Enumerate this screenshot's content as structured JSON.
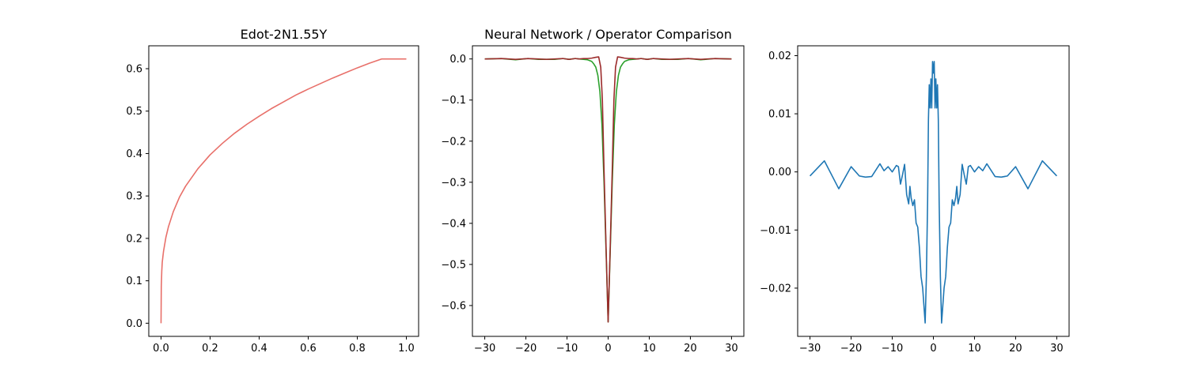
{
  "chart_data": [
    {
      "type": "line",
      "title": "Edot-2N1.55Y",
      "xlim": [
        -0.05,
        1.05
      ],
      "ylim": [
        -0.031,
        0.654
      ],
      "x_ticks": [
        0.0,
        0.2,
        0.4,
        0.6,
        0.8,
        1.0
      ],
      "x_tick_labels": [
        "0.0",
        "0.2",
        "0.4",
        "0.6",
        "0.8",
        "1.0"
      ],
      "y_ticks": [
        0.0,
        0.1,
        0.2,
        0.3,
        0.4,
        0.5,
        0.6
      ],
      "y_tick_labels": [
        "0.0",
        "0.1",
        "0.2",
        "0.3",
        "0.4",
        "0.5",
        "0.6"
      ],
      "series": [
        {
          "color": "#e8706a",
          "x": [
            0.0,
            0.001,
            0.003,
            0.005,
            0.01,
            0.02,
            0.03,
            0.05,
            0.075,
            0.1,
            0.15,
            0.2,
            0.25,
            0.3,
            0.35,
            0.4,
            0.45,
            0.5,
            0.55,
            0.6,
            0.65,
            0.7,
            0.75,
            0.8,
            0.85,
            0.9,
            0.95,
            1.0
          ],
          "y": [
            0.0,
            0.086,
            0.123,
            0.144,
            0.169,
            0.203,
            0.227,
            0.263,
            0.297,
            0.323,
            0.364,
            0.397,
            0.424,
            0.448,
            0.469,
            0.488,
            0.506,
            0.522,
            0.538,
            0.552,
            0.565,
            0.578,
            0.59,
            0.602,
            0.613,
            0.623,
            0.623,
            0.623
          ]
        }
      ]
    },
    {
      "type": "line",
      "title": "Neural Network / Operator Comparison",
      "xlim": [
        -33,
        33
      ],
      "ylim": [
        -0.675,
        0.032
      ],
      "x_ticks": [
        -30,
        -20,
        -10,
        0,
        10,
        20,
        30
      ],
      "x_tick_labels": [
        "−30",
        "−20",
        "−10",
        "0",
        "10",
        "20",
        "30"
      ],
      "y_ticks": [
        0.0,
        -0.1,
        -0.2,
        -0.3,
        -0.4,
        -0.5,
        -0.6
      ],
      "y_tick_labels": [
        "0.0",
        "−0.1",
        "−0.2",
        "−0.3",
        "−0.4",
        "−0.5",
        "−0.6"
      ],
      "series": [
        {
          "color": "#2ca02c",
          "x": [
            -30,
            -26,
            -22.5,
            -19.5,
            -17,
            -15,
            -13,
            -11,
            -9.5,
            -8,
            -7,
            -6,
            -5,
            -4,
            -3.5,
            -3,
            -2.5,
            -2,
            -1.5,
            -1,
            -0.5,
            0,
            0.5,
            1,
            1.5,
            2,
            2.5,
            3,
            3.5,
            4,
            5,
            6,
            7,
            8,
            9.5,
            11,
            13,
            15,
            17,
            19.5,
            22.5,
            26,
            30
          ],
          "y": [
            0.0,
            0.001,
            -0.002,
            0.001,
            -0.001,
            -0.001,
            -0.001,
            0.001,
            -0.001,
            0.001,
            0.0,
            -0.001,
            -0.002,
            -0.006,
            -0.012,
            -0.02,
            -0.04,
            -0.08,
            -0.16,
            -0.3,
            -0.47,
            -0.64,
            -0.47,
            -0.3,
            -0.16,
            -0.08,
            -0.04,
            -0.02,
            -0.012,
            -0.006,
            -0.002,
            -0.001,
            0.0,
            0.001,
            -0.001,
            0.001,
            -0.001,
            -0.001,
            -0.001,
            0.001,
            -0.002,
            0.001,
            0.0
          ]
        },
        {
          "color": "#9b2b2b",
          "x": [
            -30,
            -26,
            -22.5,
            -19.5,
            -17,
            -15,
            -13,
            -11,
            -9.5,
            -8,
            -7,
            -6,
            -5,
            -4,
            -3,
            -2.3,
            -1.8,
            -1.4,
            -1,
            -0.5,
            0,
            0.5,
            1,
            1.4,
            1.8,
            2.3,
            3,
            4,
            5,
            6,
            7,
            8,
            9.5,
            11,
            13,
            15,
            17,
            19.5,
            22.5,
            26,
            30
          ],
          "y": [
            0.0,
            0.001,
            -0.001,
            0.001,
            0.0,
            -0.001,
            0.0,
            0.001,
            -0.001,
            0.001,
            0.0,
            0.001,
            0.001,
            0.002,
            0.004,
            0.005,
            -0.02,
            -0.1,
            -0.27,
            -0.46,
            -0.64,
            -0.46,
            -0.27,
            -0.1,
            -0.02,
            0.005,
            0.004,
            0.002,
            0.001,
            0.001,
            0.0,
            0.001,
            -0.001,
            0.001,
            0.0,
            -0.001,
            0.0,
            0.001,
            -0.001,
            0.001,
            0.0
          ]
        }
      ]
    },
    {
      "type": "line",
      "title": "",
      "xlim": [
        -33,
        33
      ],
      "ylim": [
        -0.0283,
        0.0217
      ],
      "x_ticks": [
        -30,
        -20,
        -10,
        0,
        10,
        20,
        30
      ],
      "x_tick_labels": [
        "−30",
        "−20",
        "−10",
        "0",
        "10",
        "20",
        "30"
      ],
      "y_ticks": [
        0.02,
        0.01,
        0.0,
        -0.01,
        -0.02
      ],
      "y_tick_labels": [
        "0.02",
        "0.01",
        "0.00",
        "−0.01",
        "−0.02"
      ],
      "series": [
        {
          "color": "#1f77b4",
          "x": [
            -30,
            -26.5,
            -23,
            -20,
            -18,
            -16.5,
            -15,
            -13,
            -12,
            -11,
            -10,
            -9,
            -8.5,
            -8,
            -7.5,
            -7,
            -6.5,
            -6,
            -5.7,
            -5.4,
            -5,
            -4.6,
            -4.2,
            -3.8,
            -3.4,
            -3,
            -2.6,
            -2.3,
            -2,
            -1.7,
            -1.4,
            -1.2,
            -1,
            -0.8,
            -0.6,
            -0.4,
            -0.2,
            0,
            0.2,
            0.4,
            0.6,
            0.8,
            1,
            1.2,
            1.4,
            1.7,
            2,
            2.3,
            2.6,
            3,
            3.4,
            3.8,
            4.2,
            4.6,
            5,
            5.4,
            5.7,
            6,
            6.5,
            7,
            7.5,
            8,
            8.5,
            9,
            10,
            11,
            12,
            13,
            15,
            16.5,
            18,
            20,
            23,
            26.5,
            30
          ],
          "y": [
            -0.0007,
            0.0019,
            -0.0029,
            0.0009,
            -0.0007,
            -0.0009,
            -0.0008,
            0.0014,
            0.0002,
            0.0009,
            0.0,
            0.0011,
            0.0009,
            -0.0021,
            -0.0005,
            0.0013,
            -0.0039,
            -0.0055,
            -0.0025,
            -0.0045,
            -0.0058,
            -0.0048,
            -0.0088,
            -0.0095,
            -0.013,
            -0.018,
            -0.02,
            -0.023,
            -0.026,
            -0.018,
            -0.005,
            0.009,
            0.015,
            0.011,
            0.016,
            0.011,
            0.019,
            0.017,
            0.019,
            0.011,
            0.016,
            0.011,
            0.015,
            0.009,
            -0.005,
            -0.018,
            -0.026,
            -0.023,
            -0.02,
            -0.018,
            -0.013,
            -0.0095,
            -0.0088,
            -0.0048,
            -0.0058,
            -0.0045,
            -0.0025,
            -0.0055,
            -0.0039,
            0.0013,
            -0.0005,
            -0.0021,
            0.0009,
            0.0011,
            0.0,
            0.0009,
            0.0002,
            0.0014,
            -0.0008,
            -0.0009,
            -0.0007,
            0.0009,
            -0.0029,
            0.0019,
            -0.0007
          ]
        }
      ]
    }
  ]
}
